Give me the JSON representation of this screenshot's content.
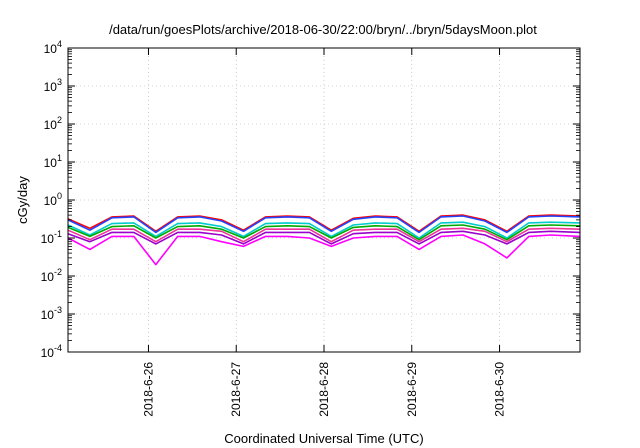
{
  "chart_data": {
    "type": "line",
    "title": "/data/run/goesPlots/archive/2018-06-30/22:00/bryn/../bryn/5daysMoon.plot",
    "xlabel": "Coordinated Universal Time (UTC)",
    "ylabel": "cGy/day",
    "y_scale": "log",
    "ylim": [
      0.0001,
      10000
    ],
    "y_ticks": [
      {
        "value": 0.0001,
        "base": "10",
        "exp": "-4"
      },
      {
        "value": 0.001,
        "base": "10",
        "exp": "-3"
      },
      {
        "value": 0.01,
        "base": "10",
        "exp": "-2"
      },
      {
        "value": 0.1,
        "base": "10",
        "exp": "-1"
      },
      {
        "value": 1,
        "base": "10",
        "exp": "0"
      },
      {
        "value": 10,
        "base": "10",
        "exp": "1"
      },
      {
        "value": 100,
        "base": "10",
        "exp": "2"
      },
      {
        "value": 1000,
        "base": "10",
        "exp": "3"
      },
      {
        "value": 10000,
        "base": "10",
        "exp": "4"
      }
    ],
    "x_range_days": [
      2018.0625,
      2018.9375
    ],
    "xlim": [
      "2018-06-25 02:00",
      "2018-06-30 22:00"
    ],
    "x_ticks": [
      "2018-6-26",
      "2018-6-27",
      "2018-6-28",
      "2018-6-29",
      "2018-6-30"
    ],
    "x_tick_dates": [
      "2018-06-26 00:00",
      "2018-06-27 00:00",
      "2018-06-28 00:00",
      "2018-06-29 00:00",
      "2018-06-30 00:00"
    ],
    "grid": true,
    "legend": "none",
    "x": [
      "2018-06-25 02:00",
      "2018-06-25 08:00",
      "2018-06-25 14:00",
      "2018-06-25 20:00",
      "2018-06-26 02:00",
      "2018-06-26 08:00",
      "2018-06-26 14:00",
      "2018-06-26 20:00",
      "2018-06-27 02:00",
      "2018-06-27 08:00",
      "2018-06-27 14:00",
      "2018-06-27 20:00",
      "2018-06-28 02:00",
      "2018-06-28 08:00",
      "2018-06-28 14:00",
      "2018-06-28 20:00",
      "2018-06-29 02:00",
      "2018-06-29 08:00",
      "2018-06-29 14:00",
      "2018-06-29 20:00",
      "2018-06-30 02:00",
      "2018-06-30 08:00",
      "2018-06-30 14:00",
      "2018-06-30 22:00"
    ],
    "series": [
      {
        "color": "#ff0000",
        "values": [
          0.32,
          0.18,
          0.36,
          0.38,
          0.15,
          0.36,
          0.38,
          0.3,
          0.16,
          0.36,
          0.38,
          0.36,
          0.16,
          0.33,
          0.38,
          0.36,
          0.15,
          0.38,
          0.4,
          0.3,
          0.15,
          0.38,
          0.4,
          0.38
        ]
      },
      {
        "color": "#2244ff",
        "values": [
          0.3,
          0.16,
          0.34,
          0.36,
          0.14,
          0.34,
          0.36,
          0.28,
          0.15,
          0.34,
          0.36,
          0.34,
          0.15,
          0.31,
          0.36,
          0.34,
          0.14,
          0.36,
          0.38,
          0.28,
          0.14,
          0.36,
          0.38,
          0.36
        ]
      },
      {
        "color": "#00cccc",
        "values": [
          0.22,
          0.12,
          0.24,
          0.25,
          0.11,
          0.24,
          0.25,
          0.2,
          0.11,
          0.24,
          0.25,
          0.24,
          0.11,
          0.22,
          0.25,
          0.24,
          0.1,
          0.25,
          0.26,
          0.2,
          0.1,
          0.25,
          0.26,
          0.25
        ]
      },
      {
        "color": "#00aa00",
        "values": [
          0.19,
          0.11,
          0.2,
          0.21,
          0.1,
          0.2,
          0.21,
          0.17,
          0.1,
          0.2,
          0.21,
          0.2,
          0.1,
          0.19,
          0.21,
          0.2,
          0.09,
          0.21,
          0.22,
          0.17,
          0.09,
          0.21,
          0.22,
          0.21
        ]
      },
      {
        "color": "#ee3399",
        "values": [
          0.16,
          0.09,
          0.17,
          0.17,
          0.08,
          0.17,
          0.17,
          0.15,
          0.08,
          0.17,
          0.17,
          0.17,
          0.08,
          0.16,
          0.17,
          0.17,
          0.08,
          0.17,
          0.18,
          0.15,
          0.08,
          0.17,
          0.18,
          0.17
        ]
      },
      {
        "color": "#9900cc",
        "values": [
          0.13,
          0.08,
          0.14,
          0.14,
          0.07,
          0.14,
          0.14,
          0.12,
          0.07,
          0.14,
          0.14,
          0.14,
          0.07,
          0.13,
          0.14,
          0.14,
          0.07,
          0.14,
          0.15,
          0.12,
          0.07,
          0.14,
          0.15,
          0.14
        ]
      },
      {
        "color": "#ff00ff",
        "values": [
          0.1,
          0.05,
          0.11,
          0.11,
          0.02,
          0.11,
          0.11,
          0.08,
          0.06,
          0.11,
          0.11,
          0.1,
          0.06,
          0.1,
          0.11,
          0.11,
          0.05,
          0.11,
          0.12,
          0.07,
          0.03,
          0.11,
          0.12,
          0.11
        ]
      }
    ]
  }
}
